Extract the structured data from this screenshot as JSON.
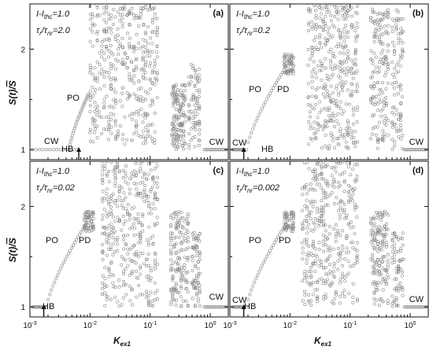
{
  "chart_data": [
    {
      "panel": "(a)",
      "type": "scatter",
      "param_line1": "I-I",
      "param_line1_sub": "thc",
      "param_line1_tail": "=1.0",
      "param_line2": "τ",
      "param_line2_sub1": "r",
      "param_line2_mid": "/τ",
      "param_line2_sub2": "nr",
      "param_line2_tail": "=2.0",
      "labels": {
        "po": "PO",
        "hb": "HB",
        "cw_left": "CW",
        "cw_right": "CW"
      },
      "hb_x": 0.0065,
      "po_curve": {
        "x_start": 0.0045,
        "x_end": 0.0094,
        "y_end": 1.55
      },
      "bands": [
        {
          "x_from": 0.01,
          "x_to": 0.14,
          "y_from": 1.05,
          "y_to": 2.45,
          "n": 420
        },
        {
          "x_from": 0.23,
          "x_to": 0.4,
          "y_from": 1.0,
          "y_to": 1.65,
          "n": 140
        },
        {
          "x_from": 0.44,
          "x_to": 0.7,
          "y_from": 1.0,
          "y_to": 1.85,
          "n": 80
        }
      ],
      "xlim": [
        0.001,
        2.0
      ],
      "ylim": [
        0.9,
        2.45
      ],
      "xscale": "log"
    },
    {
      "panel": "(b)",
      "type": "scatter",
      "param_line1": "I-I",
      "param_line1_sub": "thc",
      "param_line1_tail": "=1.0",
      "param_line2": "τ",
      "param_line2_sub1": "r",
      "param_line2_mid": "/τ",
      "param_line2_sub2": "nr",
      "param_line2_tail": "=0.2",
      "labels": {
        "po": "PO",
        "pd": "PD",
        "hb": "HB",
        "cw_left": "CW",
        "cw_right": "CW"
      },
      "hb_x": 0.0017,
      "po_curve": {
        "x_start": 0.0019,
        "x_end": 0.0085,
        "y_end": 1.82
      },
      "bands": [
        {
          "x_from": 0.008,
          "x_to": 0.012,
          "y_from": 1.75,
          "y_to": 1.95,
          "n": 60
        },
        {
          "x_from": 0.02,
          "x_to": 0.14,
          "y_from": 1.0,
          "y_to": 2.45,
          "n": 380
        },
        {
          "x_from": 0.22,
          "x_to": 0.45,
          "y_from": 1.0,
          "y_to": 2.4,
          "n": 160
        },
        {
          "x_from": 0.5,
          "x_to": 0.8,
          "y_from": 1.0,
          "y_to": 2.4,
          "n": 90
        }
      ],
      "xlim": [
        0.001,
        2.0
      ],
      "ylim": [
        0.9,
        2.45
      ],
      "xscale": "log"
    },
    {
      "panel": "(c)",
      "type": "scatter",
      "param_line1": "I-I",
      "param_line1_sub": "thc",
      "param_line1_tail": "=1.0",
      "param_line2": "τ",
      "param_line2_sub1": "r",
      "param_line2_mid": "/τ",
      "param_line2_sub2": "nr",
      "param_line2_tail": "=0.02",
      "labels": {
        "po": "PO",
        "pd": "PD",
        "hb": "HB",
        "cw_right": "CW"
      },
      "hb_x": 0.0017,
      "po_curve": {
        "x_start": 0.0019,
        "x_end": 0.0085,
        "y_end": 1.82
      },
      "bands": [
        {
          "x_from": 0.008,
          "x_to": 0.012,
          "y_from": 1.75,
          "y_to": 1.95,
          "n": 60
        },
        {
          "x_from": 0.016,
          "x_to": 0.14,
          "y_from": 1.0,
          "y_to": 2.45,
          "n": 380
        },
        {
          "x_from": 0.22,
          "x_to": 0.45,
          "y_from": 1.0,
          "y_to": 1.95,
          "n": 150
        },
        {
          "x_from": 0.5,
          "x_to": 0.7,
          "y_from": 1.0,
          "y_to": 1.75,
          "n": 70
        }
      ],
      "xlim": [
        0.001,
        2.0
      ],
      "ylim": [
        0.9,
        2.45
      ],
      "xscale": "log"
    },
    {
      "panel": "(d)",
      "type": "scatter",
      "param_line1": "I-I",
      "param_line1_sub": "thc",
      "param_line1_tail": "=1.0",
      "param_line2": "τ",
      "param_line2_sub1": "r",
      "param_line2_mid": "/τ",
      "param_line2_sub2": "nr",
      "param_line2_tail": "=0.002",
      "labels": {
        "po": "PO",
        "pd": "PD",
        "hb": "HB",
        "cw_left": "CW",
        "cw_right": "CW"
      },
      "hb_x": 0.0017,
      "po_curve": {
        "x_start": 0.0019,
        "x_end": 0.0085,
        "y_end": 1.82
      },
      "bands": [
        {
          "x_from": 0.008,
          "x_to": 0.012,
          "y_from": 1.75,
          "y_to": 1.95,
          "n": 60
        },
        {
          "x_from": 0.016,
          "x_to": 0.14,
          "y_from": 1.0,
          "y_to": 2.45,
          "n": 380
        },
        {
          "x_from": 0.22,
          "x_to": 0.45,
          "y_from": 1.0,
          "y_to": 1.95,
          "n": 150
        },
        {
          "x_from": 0.5,
          "x_to": 0.8,
          "y_from": 1.0,
          "y_to": 1.75,
          "n": 70
        }
      ],
      "xlim": [
        0.001,
        2.0
      ],
      "ylim": [
        0.9,
        2.45
      ],
      "xscale": "log"
    }
  ],
  "axes": {
    "ylabel_main": "S(t)/",
    "ylabel_bar": "S",
    "xlabel_main": "K",
    "xlabel_sub": "ex1",
    "xticks": [
      {
        "base": "10",
        "exp": "-3"
      },
      {
        "base": "10",
        "exp": "-2"
      },
      {
        "base": "10",
        "exp": "-1"
      },
      {
        "base": "10",
        "exp": "0"
      }
    ],
    "yticks": [
      "1",
      "2"
    ]
  }
}
